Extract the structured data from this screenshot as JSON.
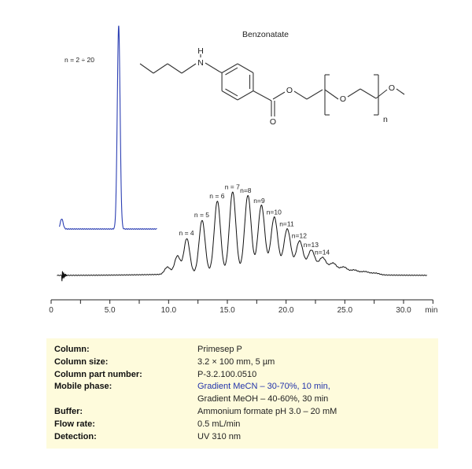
{
  "chart_data": {
    "type": "line",
    "xlabel": "min",
    "xlim": [
      0,
      32.5
    ],
    "x_ticks": [
      {
        "value": 0,
        "label": "0"
      },
      {
        "value": 5,
        "label": "5.0"
      },
      {
        "value": 10,
        "label": "10.0"
      },
      {
        "value": 15,
        "label": "15.0"
      },
      {
        "value": 20,
        "label": "20.0"
      },
      {
        "value": 25,
        "label": "25.0"
      },
      {
        "value": 30,
        "label": "30.0"
      }
    ],
    "series": [
      {
        "name": "MeCN gradient trace",
        "color": "#2c3fb3",
        "x_range": [
          0.7,
          9.0
        ],
        "annotation": "n = 2 ÷ 20",
        "peaks": [
          {
            "rt": 0.9,
            "height": 0.05
          },
          {
            "rt": 5.75,
            "height": 1.0
          }
        ]
      },
      {
        "name": "MeOH gradient trace",
        "color": "#111111",
        "x_range": [
          0.5,
          32.0
        ],
        "peaks": [
          {
            "rt": 9.9,
            "height": 0.08,
            "label": ""
          },
          {
            "rt": 10.75,
            "height": 0.2,
            "label": ""
          },
          {
            "rt": 11.55,
            "height": 0.39,
            "label": "n = 4"
          },
          {
            "rt": 12.85,
            "height": 0.59,
            "label": "n = 5"
          },
          {
            "rt": 14.15,
            "height": 0.8,
            "label": "n = 6"
          },
          {
            "rt": 15.45,
            "height": 0.9,
            "label": "n = 7"
          },
          {
            "rt": 16.75,
            "height": 0.86,
            "label": "n=8"
          },
          {
            "rt": 17.9,
            "height": 0.75,
            "label": "n=9"
          },
          {
            "rt": 19.0,
            "height": 0.62,
            "label": "n=10"
          },
          {
            "rt": 20.1,
            "height": 0.49,
            "label": "n=11"
          },
          {
            "rt": 21.15,
            "height": 0.36,
            "label": "n=12"
          },
          {
            "rt": 22.15,
            "height": 0.26,
            "label": "n=13"
          },
          {
            "rt": 23.1,
            "height": 0.18,
            "label": "n=14"
          },
          {
            "rt": 24.0,
            "height": 0.12,
            "label": ""
          },
          {
            "rt": 24.9,
            "height": 0.08,
            "label": ""
          },
          {
            "rt": 25.8,
            "height": 0.05,
            "label": ""
          },
          {
            "rt": 26.7,
            "height": 0.035,
            "label": ""
          },
          {
            "rt": 27.6,
            "height": 0.02,
            "label": ""
          }
        ]
      }
    ],
    "structure": {
      "title": "Benzonatate",
      "atom_N": "N",
      "atom_H": "H",
      "atom_O": "O",
      "subscript": "n"
    }
  },
  "conditions": [
    {
      "label": "Column:",
      "value": "Primesep  P",
      "color": ""
    },
    {
      "label": "Column size:",
      "value": "3.2 × 100 mm, 5 µm",
      "color": ""
    },
    {
      "label": "Column part number:",
      "value": "P-3.2.100.0510",
      "color": ""
    },
    {
      "label": "Mobile phase:",
      "value": "Gradient MeCN – 30-70%, 10  min,",
      "color": "#2233aa"
    },
    {
      "label": "",
      "value": "Gradient MeOH – 40-60%, 30 min",
      "color": ""
    },
    {
      "label": "Buffer:",
      "value": "Ammonium formate pH 3.0 – 20  mM",
      "color": ""
    },
    {
      "label": "Flow rate:",
      "value": "0.5 mL/min",
      "color": ""
    },
    {
      "label": "Detection:",
      "value": "UV 310 nm",
      "color": ""
    }
  ]
}
